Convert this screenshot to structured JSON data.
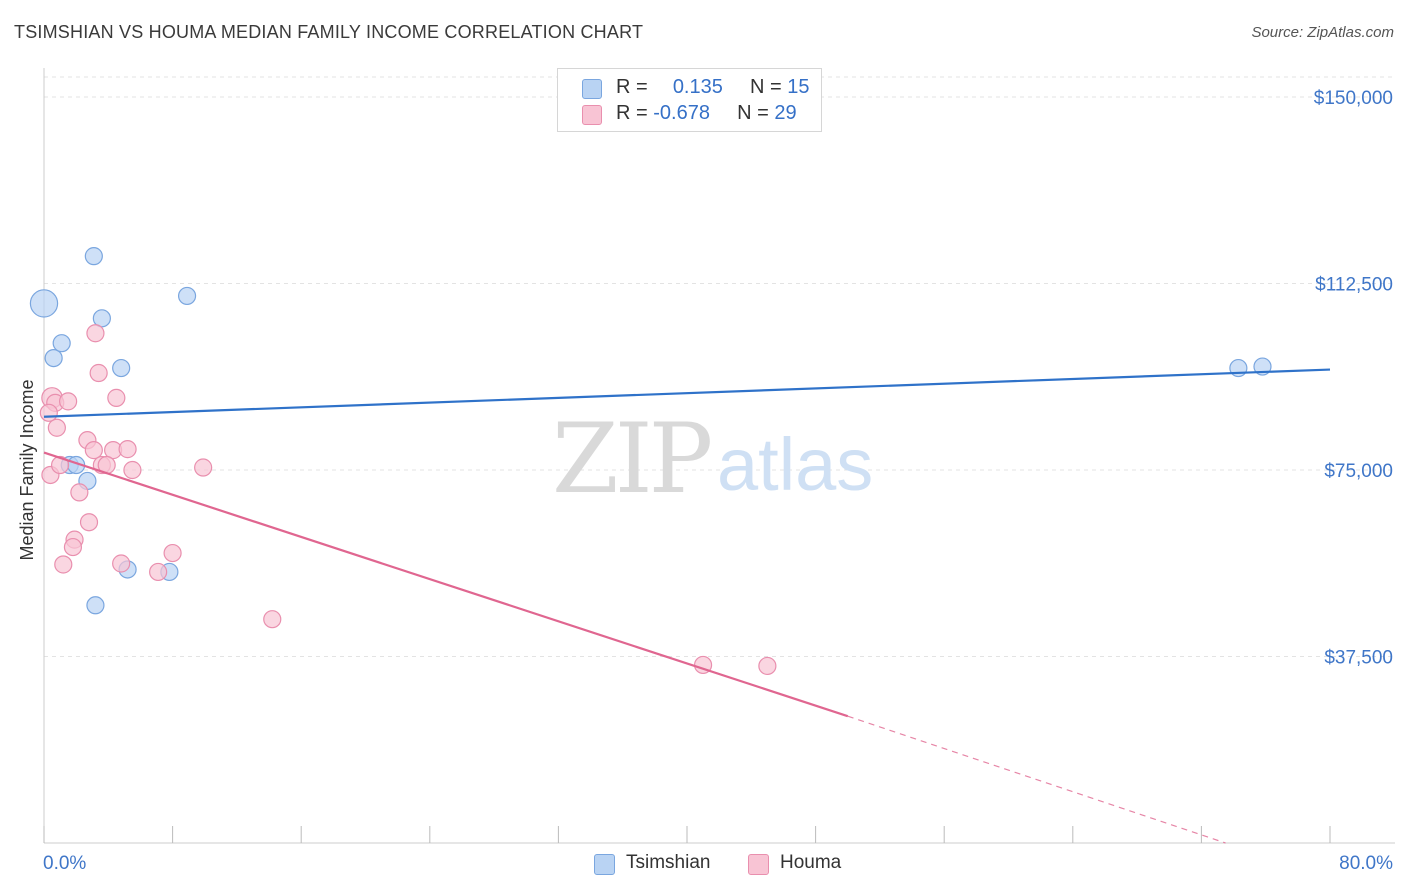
{
  "title": "TSIMSHIAN VS HOUMA MEDIAN FAMILY INCOME CORRELATION CHART",
  "source": "Source: ZipAtlas.com",
  "watermark": {
    "zip": "ZIP",
    "atlas": "atlas"
  },
  "legend": {
    "rows": [
      {
        "r_label": "R =",
        "r_value": "0.135",
        "n_label": "N =",
        "n_value": "15"
      },
      {
        "r_label": "R =",
        "r_value": "-0.678",
        "n_label": "N =",
        "n_value": "29"
      }
    ]
  },
  "colors": {
    "tsimshian_fill": "#b9d3f3",
    "tsimshian_stroke": "#7aa6df",
    "tsimshian_line": "#2f72c9",
    "houma_fill": "#f8c4d4",
    "houma_stroke": "#e98fae",
    "houma_line": "#e06690",
    "axis_text": "#3f76c8",
    "grid": "#e3e3e3"
  },
  "chart_data": {
    "type": "scatter",
    "title": "TSIMSHIAN VS HOUMA MEDIAN FAMILY INCOME CORRELATION CHART",
    "xlabel": "",
    "ylabel": "Median Family Income",
    "xlim": [
      0,
      80
    ],
    "ylim": [
      0,
      150000
    ],
    "x_tick_labels": [
      "0.0%",
      "80.0%"
    ],
    "y_ticks": [
      37500,
      75000,
      112500,
      150000
    ],
    "y_tick_labels": [
      "$37,500",
      "$75,000",
      "$112,500",
      "$150,000"
    ],
    "grid": true,
    "legend_position": "top-center",
    "series": [
      {
        "name": "Tsimshian",
        "R": 0.135,
        "N": 15,
        "points": [
          {
            "x": 0.0,
            "y": 108500,
            "s": 1.6
          },
          {
            "x": 0.6,
            "y": 97500,
            "s": 1
          },
          {
            "x": 1.1,
            "y": 100500,
            "s": 1
          },
          {
            "x": 3.1,
            "y": 118000,
            "s": 1
          },
          {
            "x": 3.6,
            "y": 105500,
            "s": 1
          },
          {
            "x": 8.9,
            "y": 110000,
            "s": 1
          },
          {
            "x": 4.8,
            "y": 95500,
            "s": 1
          },
          {
            "x": 1.6,
            "y": 76000,
            "s": 1
          },
          {
            "x": 2.0,
            "y": 76000,
            "s": 1
          },
          {
            "x": 2.7,
            "y": 72800,
            "s": 1
          },
          {
            "x": 5.2,
            "y": 55000,
            "s": 1
          },
          {
            "x": 7.8,
            "y": 54500,
            "s": 1
          },
          {
            "x": 3.2,
            "y": 47800,
            "s": 1
          },
          {
            "x": 74.3,
            "y": 95500,
            "s": 1
          },
          {
            "x": 75.8,
            "y": 95800,
            "s": 1
          }
        ],
        "trend": {
          "x0": 0,
          "y0": 85700,
          "x1": 80,
          "y1": 95200
        }
      },
      {
        "name": "Houma",
        "R": -0.678,
        "N": 29,
        "points": [
          {
            "x": 0.5,
            "y": 89500,
            "s": 1.2
          },
          {
            "x": 0.7,
            "y": 88500,
            "s": 1
          },
          {
            "x": 1.5,
            "y": 88800,
            "s": 1
          },
          {
            "x": 0.8,
            "y": 83500,
            "s": 1
          },
          {
            "x": 3.2,
            "y": 102500,
            "s": 1
          },
          {
            "x": 3.4,
            "y": 94500,
            "s": 1
          },
          {
            "x": 4.5,
            "y": 89500,
            "s": 1
          },
          {
            "x": 2.7,
            "y": 81000,
            "s": 1
          },
          {
            "x": 3.1,
            "y": 79000,
            "s": 1
          },
          {
            "x": 4.3,
            "y": 79000,
            "s": 1
          },
          {
            "x": 5.2,
            "y": 79200,
            "s": 1
          },
          {
            "x": 0.4,
            "y": 74000,
            "s": 1
          },
          {
            "x": 1.0,
            "y": 76000,
            "s": 1
          },
          {
            "x": 2.2,
            "y": 70500,
            "s": 1
          },
          {
            "x": 3.6,
            "y": 76000,
            "s": 1
          },
          {
            "x": 3.9,
            "y": 76000,
            "s": 1
          },
          {
            "x": 5.5,
            "y": 75000,
            "s": 1
          },
          {
            "x": 9.9,
            "y": 75500,
            "s": 1
          },
          {
            "x": 2.8,
            "y": 64500,
            "s": 1
          },
          {
            "x": 1.9,
            "y": 61000,
            "s": 1
          },
          {
            "x": 1.8,
            "y": 59500,
            "s": 1
          },
          {
            "x": 1.2,
            "y": 56000,
            "s": 1
          },
          {
            "x": 4.8,
            "y": 56200,
            "s": 1
          },
          {
            "x": 7.1,
            "y": 54500,
            "s": 1
          },
          {
            "x": 8.0,
            "y": 58300,
            "s": 1
          },
          {
            "x": 14.2,
            "y": 45000,
            "s": 1
          },
          {
            "x": 41.0,
            "y": 35800,
            "s": 1
          },
          {
            "x": 45.0,
            "y": 35600,
            "s": 1
          },
          {
            "x": 0.3,
            "y": 86500,
            "s": 1
          }
        ],
        "trend": {
          "x0": 0,
          "y0": 78500,
          "x1": 50,
          "y1": 25500
        },
        "trend_dashed": {
          "x0": 50,
          "y0": 25500,
          "x1": 73.5,
          "y1": 0
        }
      }
    ]
  },
  "bottom_legend": [
    {
      "label": "Tsimshian"
    },
    {
      "label": "Houma"
    }
  ]
}
